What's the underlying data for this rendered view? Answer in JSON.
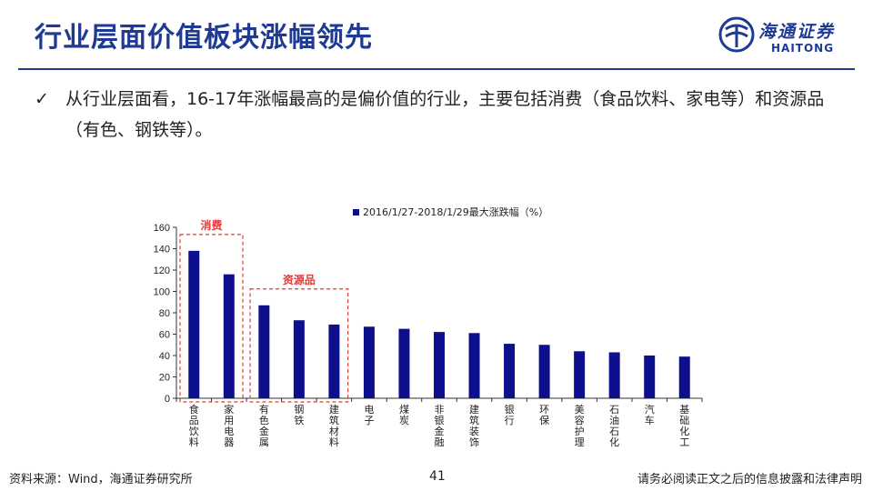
{
  "header": {
    "title": "行业层面价值板块涨幅领先",
    "logo_cn": "海通证券",
    "logo_en": "HAITONG"
  },
  "bullet": {
    "check": "✓",
    "text": "从行业层面看，16-17年涨幅最高的是偏价值的行业，主要包括消费（食品饮料、家电等）和资源品（有色、钢铁等）。"
  },
  "chart_data": {
    "type": "bar",
    "legend_label": "2016/1/27-2018/1/29最大涨跌幅（%）",
    "legend_position": "top",
    "categories": [
      "食品饮料",
      "家用电器",
      "有色金属",
      "钢铁",
      "建筑材料",
      "电子",
      "煤炭",
      "非银金融",
      "建筑装饰",
      "银行",
      "环保",
      "美容护理",
      "石油石化",
      "汽车",
      "基础化工"
    ],
    "values": [
      138,
      116,
      87,
      73,
      69,
      67,
      65,
      62,
      61,
      51,
      50,
      44,
      43,
      40,
      39
    ],
    "ylim": [
      0,
      160
    ],
    "yticks": [
      0,
      20,
      40,
      60,
      80,
      100,
      120,
      140,
      160
    ],
    "bar_color": "#0d0f8c",
    "grid": false,
    "annotations": [
      {
        "label": "消费",
        "from_index": 0,
        "to_index": 1,
        "color": "#e53935"
      },
      {
        "label": "资源品",
        "from_index": 2,
        "to_index": 4,
        "color": "#e53935"
      }
    ]
  },
  "footer": {
    "source": "资料来源：Wind，海通证券研究所",
    "page": "41",
    "disclaimer": "请务必阅读正文之后的信息披露和法律声明"
  }
}
